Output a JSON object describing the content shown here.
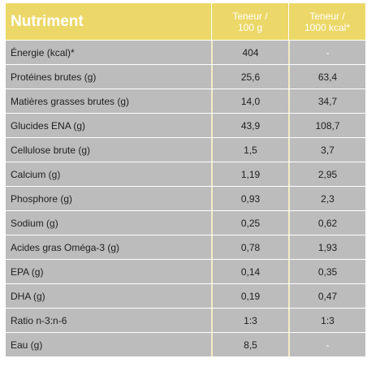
{
  "table": {
    "headers": {
      "nutrient": "Nutriment",
      "per100g": "Teneur /\n100 g",
      "per1000kcal": "Teneur /\n1000 kcal*"
    },
    "rows": [
      {
        "label": "Énergie (kcal)*",
        "per100g": "404",
        "per1000kcal": "-"
      },
      {
        "label": "Protéines brutes (g)",
        "per100g": "25,6",
        "per1000kcal": "63,4"
      },
      {
        "label": "Matières grasses brutes (g)",
        "per100g": "14,0",
        "per1000kcal": "34,7"
      },
      {
        "label": "Glucides ENA (g)",
        "per100g": "43,9",
        "per1000kcal": "108,7"
      },
      {
        "label": "Cellulose brute  (g)",
        "per100g": "1,5",
        "per1000kcal": "3,7"
      },
      {
        "label": "Calcium (g)",
        "per100g": "1,19",
        "per1000kcal": "2,95"
      },
      {
        "label": "Phosphore (g)",
        "per100g": "0,93",
        "per1000kcal": "2,3"
      },
      {
        "label": "Sodium (g)",
        "per100g": "0,25",
        "per1000kcal": "0,62"
      },
      {
        "label": "Acides gras Oméga-3 (g)",
        "per100g": "0,78",
        "per1000kcal": "1,93"
      },
      {
        "label": "EPA (g)",
        "per100g": "0,14",
        "per1000kcal": "0,35"
      },
      {
        "label": "DHA (g)",
        "per100g": "0,19",
        "per1000kcal": "0,47"
      },
      {
        "label": "Ratio n-3:n-6",
        "per100g": "1:3",
        "per1000kcal": "1:3"
      },
      {
        "label": "Eau (g)",
        "per100g": "8,5",
        "per1000kcal": "-"
      }
    ]
  },
  "colors": {
    "header_bg": "#ecd868",
    "cell_bg": "#bdbcbd",
    "divider": "#f2ecc4"
  }
}
